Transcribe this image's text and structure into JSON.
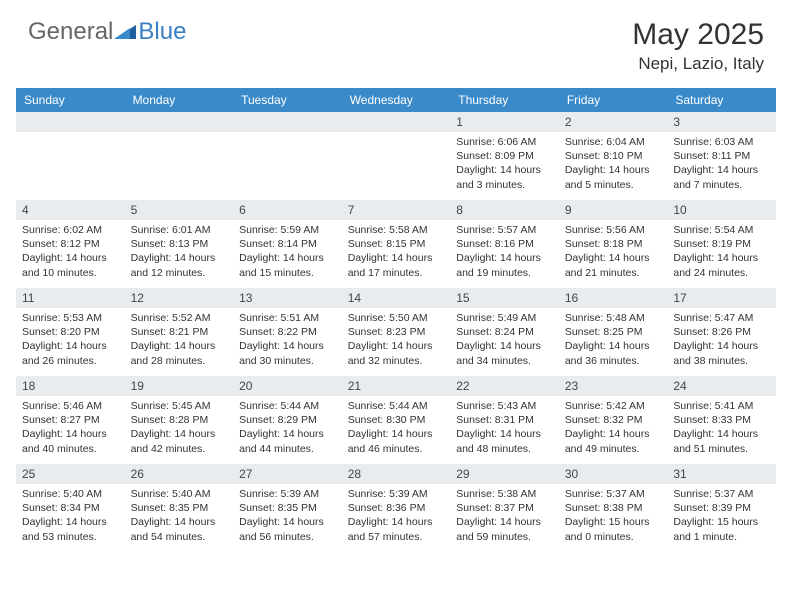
{
  "logo": {
    "part1": "General",
    "part2": "Blue"
  },
  "title": "May 2025",
  "location": "Nepi, Lazio, Italy",
  "colors": {
    "header_bg": "#3a8ac9",
    "header_text": "#ffffff",
    "daybar_bg": "#e9ecef",
    "text": "#333333",
    "logo_blue": "#3a7fc4",
    "logo_gray": "#666666",
    "background": "#ffffff"
  },
  "weekdays": [
    "Sunday",
    "Monday",
    "Tuesday",
    "Wednesday",
    "Thursday",
    "Friday",
    "Saturday"
  ],
  "layout": {
    "first_weekday_index": 4,
    "days_in_month": 31
  },
  "days": {
    "1": {
      "sunrise": "6:06 AM",
      "sunset": "8:09 PM",
      "daylight": "14 hours and 3 minutes."
    },
    "2": {
      "sunrise": "6:04 AM",
      "sunset": "8:10 PM",
      "daylight": "14 hours and 5 minutes."
    },
    "3": {
      "sunrise": "6:03 AM",
      "sunset": "8:11 PM",
      "daylight": "14 hours and 7 minutes."
    },
    "4": {
      "sunrise": "6:02 AM",
      "sunset": "8:12 PM",
      "daylight": "14 hours and 10 minutes."
    },
    "5": {
      "sunrise": "6:01 AM",
      "sunset": "8:13 PM",
      "daylight": "14 hours and 12 minutes."
    },
    "6": {
      "sunrise": "5:59 AM",
      "sunset": "8:14 PM",
      "daylight": "14 hours and 15 minutes."
    },
    "7": {
      "sunrise": "5:58 AM",
      "sunset": "8:15 PM",
      "daylight": "14 hours and 17 minutes."
    },
    "8": {
      "sunrise": "5:57 AM",
      "sunset": "8:16 PM",
      "daylight": "14 hours and 19 minutes."
    },
    "9": {
      "sunrise": "5:56 AM",
      "sunset": "8:18 PM",
      "daylight": "14 hours and 21 minutes."
    },
    "10": {
      "sunrise": "5:54 AM",
      "sunset": "8:19 PM",
      "daylight": "14 hours and 24 minutes."
    },
    "11": {
      "sunrise": "5:53 AM",
      "sunset": "8:20 PM",
      "daylight": "14 hours and 26 minutes."
    },
    "12": {
      "sunrise": "5:52 AM",
      "sunset": "8:21 PM",
      "daylight": "14 hours and 28 minutes."
    },
    "13": {
      "sunrise": "5:51 AM",
      "sunset": "8:22 PM",
      "daylight": "14 hours and 30 minutes."
    },
    "14": {
      "sunrise": "5:50 AM",
      "sunset": "8:23 PM",
      "daylight": "14 hours and 32 minutes."
    },
    "15": {
      "sunrise": "5:49 AM",
      "sunset": "8:24 PM",
      "daylight": "14 hours and 34 minutes."
    },
    "16": {
      "sunrise": "5:48 AM",
      "sunset": "8:25 PM",
      "daylight": "14 hours and 36 minutes."
    },
    "17": {
      "sunrise": "5:47 AM",
      "sunset": "8:26 PM",
      "daylight": "14 hours and 38 minutes."
    },
    "18": {
      "sunrise": "5:46 AM",
      "sunset": "8:27 PM",
      "daylight": "14 hours and 40 minutes."
    },
    "19": {
      "sunrise": "5:45 AM",
      "sunset": "8:28 PM",
      "daylight": "14 hours and 42 minutes."
    },
    "20": {
      "sunrise": "5:44 AM",
      "sunset": "8:29 PM",
      "daylight": "14 hours and 44 minutes."
    },
    "21": {
      "sunrise": "5:44 AM",
      "sunset": "8:30 PM",
      "daylight": "14 hours and 46 minutes."
    },
    "22": {
      "sunrise": "5:43 AM",
      "sunset": "8:31 PM",
      "daylight": "14 hours and 48 minutes."
    },
    "23": {
      "sunrise": "5:42 AM",
      "sunset": "8:32 PM",
      "daylight": "14 hours and 49 minutes."
    },
    "24": {
      "sunrise": "5:41 AM",
      "sunset": "8:33 PM",
      "daylight": "14 hours and 51 minutes."
    },
    "25": {
      "sunrise": "5:40 AM",
      "sunset": "8:34 PM",
      "daylight": "14 hours and 53 minutes."
    },
    "26": {
      "sunrise": "5:40 AM",
      "sunset": "8:35 PM",
      "daylight": "14 hours and 54 minutes."
    },
    "27": {
      "sunrise": "5:39 AM",
      "sunset": "8:35 PM",
      "daylight": "14 hours and 56 minutes."
    },
    "28": {
      "sunrise": "5:39 AM",
      "sunset": "8:36 PM",
      "daylight": "14 hours and 57 minutes."
    },
    "29": {
      "sunrise": "5:38 AM",
      "sunset": "8:37 PM",
      "daylight": "14 hours and 59 minutes."
    },
    "30": {
      "sunrise": "5:37 AM",
      "sunset": "8:38 PM",
      "daylight": "15 hours and 0 minutes."
    },
    "31": {
      "sunrise": "5:37 AM",
      "sunset": "8:39 PM",
      "daylight": "15 hours and 1 minute."
    }
  },
  "labels": {
    "sunrise": "Sunrise:",
    "sunset": "Sunset:",
    "daylight": "Daylight:"
  }
}
